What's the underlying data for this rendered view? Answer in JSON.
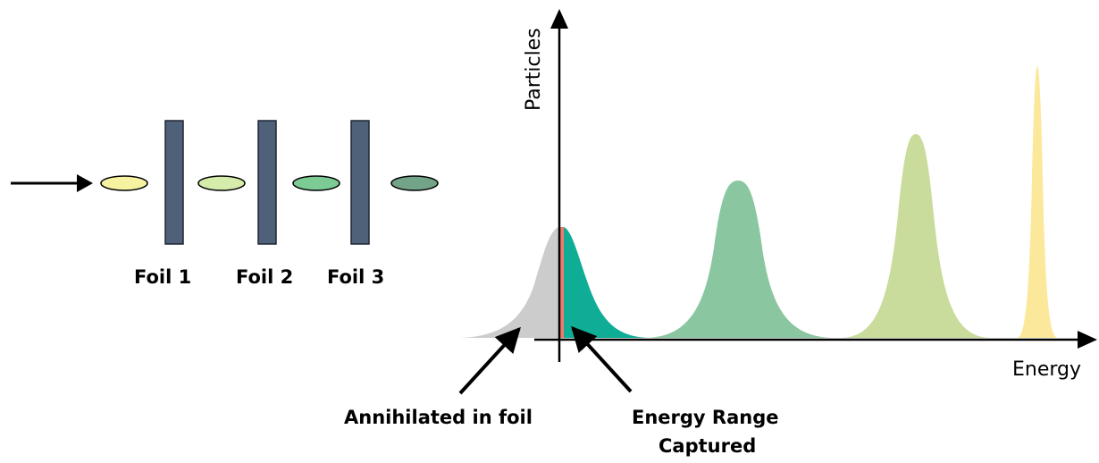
{
  "foils": [
    {
      "label": "Foil 1",
      "color": "#4f6178"
    },
    {
      "label": "Foil 2",
      "color": "#4f6178"
    },
    {
      "label": "Foil 3",
      "color": "#4f6178"
    }
  ],
  "beam_bunches": [
    {
      "color": "#f6f2a2"
    },
    {
      "color": "#d6ecaa"
    },
    {
      "color": "#7ccb94"
    },
    {
      "color": "#73a488"
    }
  ],
  "axes": {
    "y_label": "Particles",
    "x_label": "Energy"
  },
  "peaks": [
    {
      "name": "annihilated",
      "color": "#cccccc"
    },
    {
      "name": "captured",
      "color": "#0fad96"
    },
    {
      "name": "after-foil-2",
      "color": "#8ac7a0"
    },
    {
      "name": "after-foil-1",
      "color": "#c9dc9c"
    },
    {
      "name": "initial-beam",
      "color": "#fbe89a"
    }
  ],
  "cut_line_color": "#f07a6e",
  "annotations": {
    "annihilated": "Annihilated in foil",
    "captured_line1": "Energy Range",
    "captured_line2": "Captured"
  }
}
